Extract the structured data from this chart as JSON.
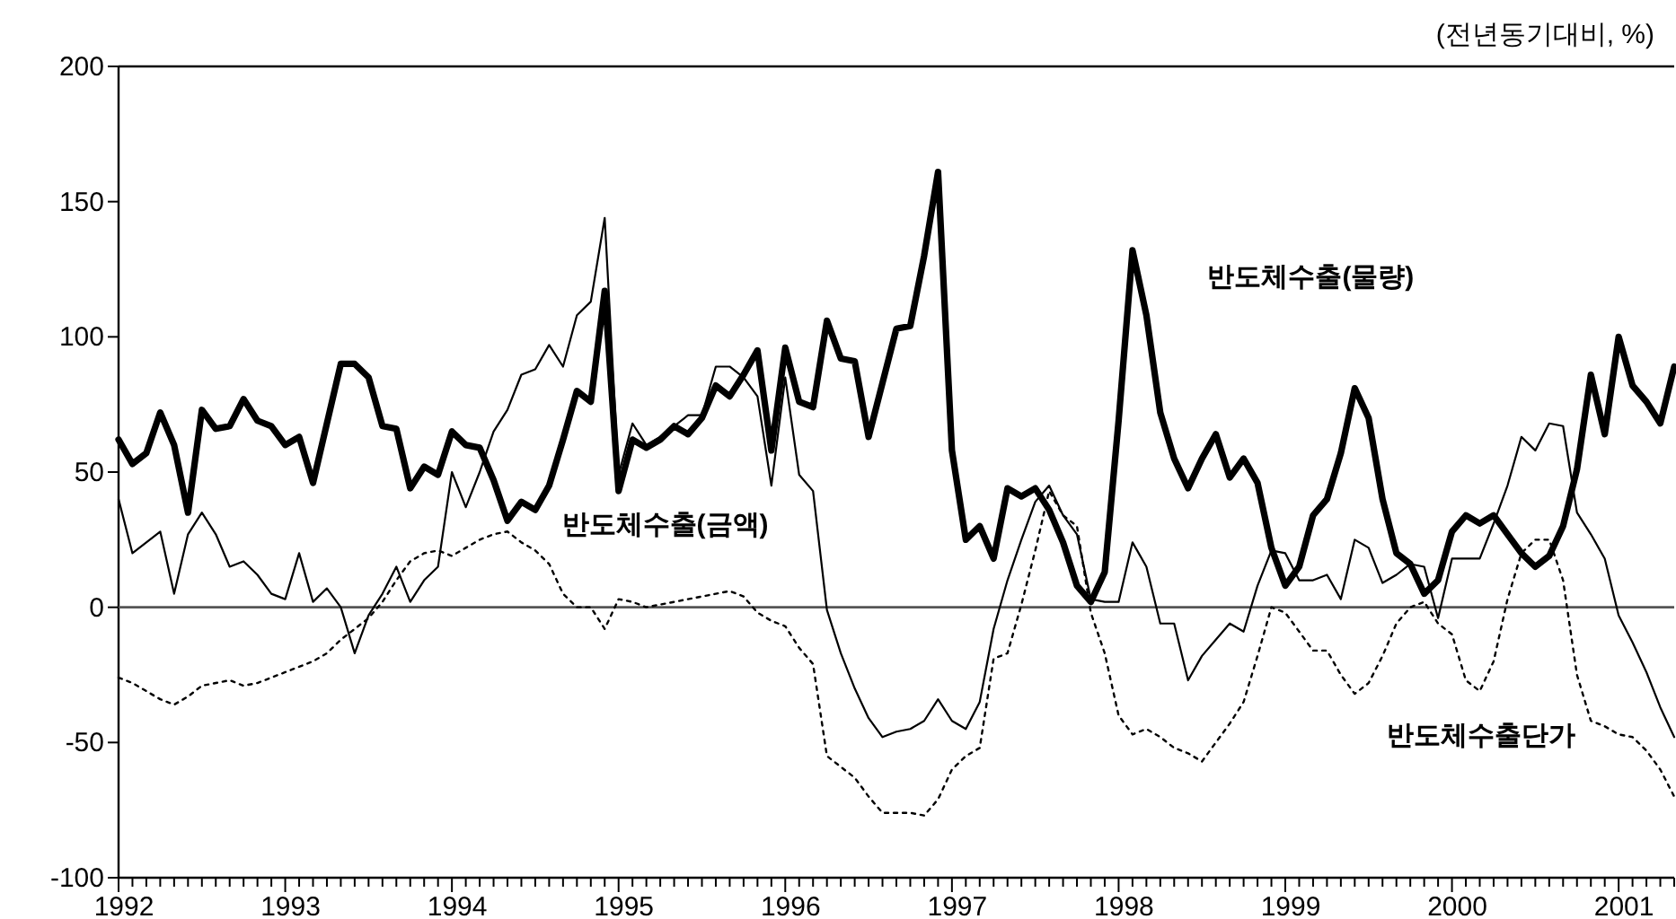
{
  "chart_data": {
    "type": "line",
    "ylabel": "(전년동기대비,  %)",
    "x": [
      "1992-01",
      "1992-02",
      "1992-03",
      "1992-04",
      "1992-05",
      "1992-06",
      "1992-07",
      "1992-08",
      "1992-09",
      "1992-10",
      "1992-11",
      "1992-12",
      "1993-01",
      "1993-02",
      "1993-03",
      "1993-04",
      "1993-05",
      "1993-06",
      "1993-07",
      "1993-08",
      "1993-09",
      "1993-10",
      "1993-11",
      "1993-12",
      "1994-01",
      "1994-02",
      "1994-03",
      "1994-04",
      "1994-05",
      "1994-06",
      "1994-07",
      "1994-08",
      "1994-09",
      "1994-10",
      "1994-11",
      "1994-12",
      "1995-01",
      "1995-02",
      "1995-03",
      "1995-04",
      "1995-05",
      "1995-06",
      "1995-07",
      "1995-08",
      "1995-09",
      "1995-10",
      "1995-11",
      "1995-12",
      "1996-01",
      "1996-02",
      "1996-03",
      "1996-04",
      "1996-05",
      "1996-06",
      "1996-07",
      "1996-08",
      "1996-09",
      "1996-10",
      "1996-11",
      "1996-12",
      "1997-01",
      "1997-02",
      "1997-03",
      "1997-04",
      "1997-05",
      "1997-06",
      "1997-07",
      "1997-08",
      "1997-09",
      "1997-10",
      "1997-11",
      "1997-12",
      "1998-01",
      "1998-02",
      "1998-03",
      "1998-04",
      "1998-05",
      "1998-06",
      "1998-07",
      "1998-08",
      "1998-09",
      "1998-10",
      "1998-11",
      "1998-12",
      "1999-01",
      "1999-02",
      "1999-03",
      "1999-04",
      "1999-05",
      "1999-06",
      "1999-07",
      "1999-08",
      "1999-09",
      "1999-10",
      "1999-11",
      "1999-12",
      "2000-01",
      "2000-02",
      "2000-03",
      "2000-04",
      "2000-05",
      "2000-06",
      "2000-07",
      "2000-08",
      "2000-09",
      "2000-10",
      "2000-11",
      "2000-12",
      "2001-01",
      "2001-02",
      "2001-03",
      "2001-04",
      "2001-05"
    ],
    "series": [
      {
        "name": "반도체수출(물량)",
        "color": "#000000",
        "line_style": "solid",
        "values": [
          62,
          53,
          57,
          72,
          60,
          35,
          73,
          66,
          67,
          77,
          69,
          67,
          60,
          63,
          46,
          68,
          90,
          90,
          85,
          67,
          66,
          44,
          52,
          49,
          65,
          60,
          59,
          47,
          32,
          39,
          36,
          45,
          62,
          80,
          76,
          117,
          43,
          62,
          59,
          62,
          67,
          64,
          70,
          82,
          78,
          86,
          95,
          58,
          96,
          76,
          74,
          106,
          92,
          91,
          63,
          83,
          103,
          104,
          130,
          161,
          58,
          25,
          30,
          18,
          44,
          41,
          44,
          36,
          24,
          8,
          2,
          13,
          69,
          132,
          108,
          72,
          55,
          44,
          55,
          64,
          48,
          55,
          46,
          22,
          8,
          15,
          34,
          40,
          57,
          81,
          70,
          40,
          20,
          16,
          5,
          10,
          28,
          34,
          31,
          34,
          27,
          20,
          15,
          19,
          30,
          51,
          86,
          64,
          100,
          82,
          76,
          68,
          89
        ]
      },
      {
        "name": "반도체수출(금액)",
        "color": "#000000",
        "line_style": "solid",
        "values": [
          40,
          20,
          24,
          28,
          5,
          27,
          35,
          27,
          15,
          17,
          12,
          5,
          3,
          20,
          2,
          7,
          0,
          -17,
          -3,
          5,
          15,
          2,
          10,
          15,
          50,
          37,
          50,
          65,
          73,
          86,
          88,
          97,
          89,
          108,
          113,
          144,
          49,
          68,
          60,
          63,
          67,
          71,
          71,
          89,
          89,
          85,
          78,
          45,
          85,
          49,
          43,
          -1,
          -17,
          -30,
          -41,
          -48,
          -46,
          -45,
          -42,
          -34,
          -42,
          -45,
          -35,
          -8,
          10,
          25,
          39,
          45,
          34,
          27,
          3,
          2,
          2,
          24,
          15,
          -6,
          -6,
          -27,
          -18,
          -12,
          -6,
          -9,
          8,
          21,
          20,
          10,
          10,
          12,
          3,
          25,
          22,
          9,
          12,
          16,
          15,
          -4,
          18,
          18,
          18,
          31,
          45,
          63,
          58,
          68,
          67,
          35,
          27,
          18,
          -3,
          -13,
          -24,
          -37,
          -48
        ]
      },
      {
        "name": "반도체수출단가",
        "color": "#000000",
        "line_style": "dotted",
        "values": [
          -26,
          -28,
          -31,
          -34,
          -36,
          -33,
          -29,
          -28,
          -27,
          -29,
          -28,
          -26,
          -24,
          -22,
          -20,
          -17,
          -12,
          -8,
          -4,
          2,
          10,
          17,
          20,
          21,
          19,
          22,
          25,
          27,
          28,
          24,
          21,
          16,
          5,
          0,
          0,
          -8,
          3,
          2,
          0,
          1,
          2,
          3,
          4,
          5,
          6,
          4,
          -2,
          -5,
          -7,
          -15,
          -21,
          -55,
          -59,
          -63,
          -70,
          -76,
          -76,
          -76,
          -77,
          -71,
          -60,
          -55,
          -52,
          -19,
          -17,
          1,
          21,
          43,
          34,
          30,
          -2,
          -17,
          -40,
          -47,
          -45,
          -48,
          -52,
          -54,
          -57,
          -50,
          -43,
          -35,
          -18,
          0,
          -2,
          -9,
          -16,
          -16,
          -25,
          -32,
          -28,
          -18,
          -6,
          0,
          2,
          -6,
          -10,
          -27,
          -31,
          -20,
          3,
          20,
          25,
          25,
          10,
          -25,
          -42,
          -44,
          -47,
          -48,
          -53,
          -60,
          -70
        ]
      }
    ],
    "xlim": [
      "1992-01",
      "2001-05"
    ],
    "xticks": [
      {
        "value": "1992-01",
        "label": "1992"
      },
      {
        "value": "1992-02",
        "label": null
      },
      {
        "value": "1992-03",
        "label": null
      },
      {
        "value": "1992-04",
        "label": null
      },
      {
        "value": "1992-05",
        "label": null
      },
      {
        "value": "1992-06",
        "label": null
      },
      {
        "value": "1992-07",
        "label": null
      },
      {
        "value": "1992-08",
        "label": null
      },
      {
        "value": "1992-09",
        "label": null
      },
      {
        "value": "1992-10",
        "label": null
      },
      {
        "value": "1992-11",
        "label": null
      },
      {
        "value": "1992-12",
        "label": null
      },
      {
        "value": "1993-01",
        "label": "1993"
      },
      {
        "value": "1993-02",
        "label": null
      },
      {
        "value": "1993-03",
        "label": null
      },
      {
        "value": "1993-04",
        "label": null
      },
      {
        "value": "1993-05",
        "label": null
      },
      {
        "value": "1993-06",
        "label": null
      },
      {
        "value": "1993-07",
        "label": null
      },
      {
        "value": "1993-08",
        "label": null
      },
      {
        "value": "1993-09",
        "label": null
      },
      {
        "value": "1993-10",
        "label": null
      },
      {
        "value": "1993-11",
        "label": null
      },
      {
        "value": "1993-12",
        "label": null
      },
      {
        "value": "1994-01",
        "label": "1994"
      },
      {
        "value": "1994-02",
        "label": null
      },
      {
        "value": "1994-03",
        "label": null
      },
      {
        "value": "1994-04",
        "label": null
      },
      {
        "value": "1994-05",
        "label": null
      },
      {
        "value": "1994-06",
        "label": null
      },
      {
        "value": "1994-07",
        "label": null
      },
      {
        "value": "1994-08",
        "label": null
      },
      {
        "value": "1994-09",
        "label": null
      },
      {
        "value": "1994-10",
        "label": null
      },
      {
        "value": "1994-11",
        "label": null
      },
      {
        "value": "1994-12",
        "label": null
      },
      {
        "value": "1995-01",
        "label": "1995"
      },
      {
        "value": "1995-02",
        "label": null
      },
      {
        "value": "1995-03",
        "label": null
      },
      {
        "value": "1995-04",
        "label": null
      },
      {
        "value": "1995-05",
        "label": null
      },
      {
        "value": "1995-06",
        "label": null
      },
      {
        "value": "1995-07",
        "label": null
      },
      {
        "value": "1995-08",
        "label": null
      },
      {
        "value": "1995-09",
        "label": null
      },
      {
        "value": "1995-10",
        "label": null
      },
      {
        "value": "1995-11",
        "label": null
      },
      {
        "value": "1995-12",
        "label": null
      },
      {
        "value": "1996-01",
        "label": "1996"
      },
      {
        "value": "1996-02",
        "label": null
      },
      {
        "value": "1996-03",
        "label": null
      },
      {
        "value": "1996-04",
        "label": null
      },
      {
        "value": "1996-05",
        "label": null
      },
      {
        "value": "1996-06",
        "label": null
      },
      {
        "value": "1996-07",
        "label": null
      },
      {
        "value": "1996-08",
        "label": null
      },
      {
        "value": "1996-09",
        "label": null
      },
      {
        "value": "1996-10",
        "label": null
      },
      {
        "value": "1996-11",
        "label": null
      },
      {
        "value": "1996-12",
        "label": null
      },
      {
        "value": "1997-01",
        "label": "1997"
      },
      {
        "value": "1997-02",
        "label": null
      },
      {
        "value": "1997-03",
        "label": null
      },
      {
        "value": "1997-04",
        "label": null
      },
      {
        "value": "1997-05",
        "label": null
      },
      {
        "value": "1997-06",
        "label": null
      },
      {
        "value": "1997-07",
        "label": null
      },
      {
        "value": "1997-08",
        "label": null
      },
      {
        "value": "1997-09",
        "label": null
      },
      {
        "value": "1997-10",
        "label": null
      },
      {
        "value": "1997-11",
        "label": null
      },
      {
        "value": "1997-12",
        "label": null
      },
      {
        "value": "1998-01",
        "label": "1998"
      },
      {
        "value": "1998-02",
        "label": null
      },
      {
        "value": "1998-03",
        "label": null
      },
      {
        "value": "1998-04",
        "label": null
      },
      {
        "value": "1998-05",
        "label": null
      },
      {
        "value": "1998-06",
        "label": null
      },
      {
        "value": "1998-07",
        "label": null
      },
      {
        "value": "1998-08",
        "label": null
      },
      {
        "value": "1998-09",
        "label": null
      },
      {
        "value": "1998-10",
        "label": null
      },
      {
        "value": "1998-11",
        "label": null
      },
      {
        "value": "1998-12",
        "label": null
      },
      {
        "value": "1999-01",
        "label": "1999"
      },
      {
        "value": "1999-02",
        "label": null
      },
      {
        "value": "1999-03",
        "label": null
      },
      {
        "value": "1999-04",
        "label": null
      },
      {
        "value": "1999-05",
        "label": null
      },
      {
        "value": "1999-06",
        "label": null
      },
      {
        "value": "1999-07",
        "label": null
      },
      {
        "value": "1999-08",
        "label": null
      },
      {
        "value": "1999-09",
        "label": null
      },
      {
        "value": "1999-10",
        "label": null
      },
      {
        "value": "1999-11",
        "label": null
      },
      {
        "value": "1999-12",
        "label": null
      },
      {
        "value": "2000-01",
        "label": "2000"
      },
      {
        "value": "2000-02",
        "label": null
      },
      {
        "value": "2000-03",
        "label": null
      },
      {
        "value": "2000-04",
        "label": null
      },
      {
        "value": "2000-05",
        "label": null
      },
      {
        "value": "2000-06",
        "label": null
      },
      {
        "value": "2000-07",
        "label": null
      },
      {
        "value": "2000-08",
        "label": null
      },
      {
        "value": "2000-09",
        "label": null
      },
      {
        "value": "2000-10",
        "label": null
      },
      {
        "value": "2000-11",
        "label": null
      },
      {
        "value": "2000-12",
        "label": null
      },
      {
        "value": "2001-01",
        "label": "2001"
      },
      {
        "value": "2001-02",
        "label": null
      },
      {
        "value": "2001-03",
        "label": null
      },
      {
        "value": "2001-04",
        "label": null
      },
      {
        "value": "2001-05",
        "label": null
      }
    ],
    "ylim": [
      -100,
      200
    ],
    "yticks": [
      -100,
      -50,
      0,
      50,
      100,
      150,
      200
    ],
    "ref_lines": [
      {
        "axis": "y",
        "value": 0,
        "color": "#555555"
      }
    ],
    "marker": "none",
    "legend": false,
    "grid": false
  }
}
